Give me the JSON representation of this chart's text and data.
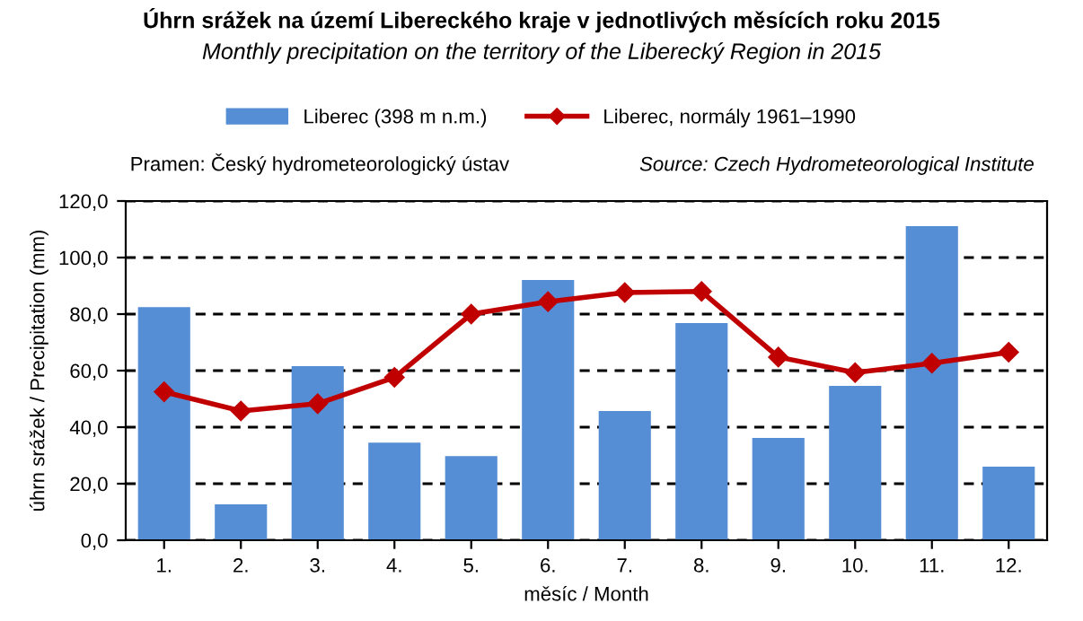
{
  "chart_data": {
    "type": "bar",
    "title": "Úhrn srážek na území Libereckého kraje v jednotlivých měsících roku 2015",
    "subtitle": "Monthly precipitation on the territory of the Liberecký Region in 2015",
    "xlabel": "měsíc / Month",
    "ylabel": "úhrn srážek / Precipitation (mm)",
    "annotations": [
      "Pramen: Český hydrometeorologický ústav",
      "Source: Czech Hydrometeorological Institute"
    ],
    "categories": [
      "1.",
      "2.",
      "3.",
      "4.",
      "5.",
      "6.",
      "7.",
      "8.",
      "9.",
      "10.",
      "11.",
      "12."
    ],
    "series": [
      {
        "name": "Liberec (398 m n.m.)",
        "color": "#558ed5",
        "values": [
          82.5,
          12.7,
          61.6,
          34.5,
          29.8,
          92.1,
          45.7,
          76.8,
          36.2,
          54.6,
          111.1,
          26.0
        ]
      },
      {
        "name": "Liberec, normály 1961–1990",
        "type": "line",
        "color": "#c00000",
        "marker": "diamond",
        "values": [
          52.5,
          45.7,
          48.3,
          57.6,
          80.0,
          84.4,
          87.6,
          88.0,
          64.8,
          59.3,
          62.6,
          66.5
        ]
      }
    ],
    "ylim": [
      0,
      120
    ],
    "yticks": [
      {
        "value": 0,
        "label": "0,0"
      },
      {
        "value": 20,
        "label": "20,0"
      },
      {
        "value": 40,
        "label": "40,0"
      },
      {
        "value": 60,
        "label": "60,0"
      },
      {
        "value": 80,
        "label": "80,0"
      },
      {
        "value": 100,
        "label": "100,0"
      },
      {
        "value": 120,
        "label": "120,0"
      }
    ],
    "grid": "y",
    "legend": "top",
    "line_style": "solid"
  }
}
